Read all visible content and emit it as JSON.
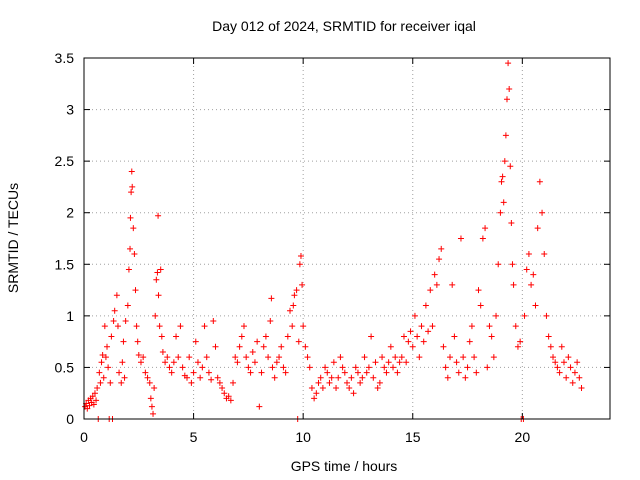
{
  "chart_data": {
    "type": "scatter",
    "title": "Day 012 of 2024, SRMTID for receiver iqal",
    "xlabel": "GPS time / hours",
    "ylabel": "SRMTID / TECUs",
    "xlim": [
      0,
      24
    ],
    "ylim": [
      0,
      3.5
    ],
    "xticks": [
      0,
      5,
      10,
      15,
      20
    ],
    "xtick_labels": [
      "0",
      "5",
      "10",
      "15",
      "20"
    ],
    "yticks": [
      0,
      0.5,
      1,
      1.5,
      2,
      2.5,
      3,
      3.5
    ],
    "ytick_labels": [
      "0",
      "0.5",
      "1",
      "1.5",
      "2",
      "2.5",
      "3",
      "3.5"
    ],
    "grid": true,
    "marker": "plus",
    "color": "#ff0000",
    "series": [
      {
        "name": "SRMTID",
        "points": [
          [
            0.05,
            0.12
          ],
          [
            0.1,
            0.15
          ],
          [
            0.15,
            0.1
          ],
          [
            0.2,
            0.18
          ],
          [
            0.25,
            0.13
          ],
          [
            0.3,
            0.2
          ],
          [
            0.35,
            0.16
          ],
          [
            0.4,
            0.22
          ],
          [
            0.45,
            0.14
          ],
          [
            0.5,
            0.25
          ],
          [
            0.55,
            0.18
          ],
          [
            0.6,
            0.3
          ],
          [
            0.65,
            0.0
          ],
          [
            0.7,
            0.45
          ],
          [
            0.75,
            0.35
          ],
          [
            0.8,
            0.55
          ],
          [
            0.85,
            0.62
          ],
          [
            0.9,
            0.4
          ],
          [
            0.95,
            0.9
          ],
          [
            1.0,
            0.6
          ],
          [
            1.05,
            0.7
          ],
          [
            1.1,
            0.5
          ],
          [
            1.15,
            0.0
          ],
          [
            1.2,
            0.35
          ],
          [
            1.25,
            0.8
          ],
          [
            1.3,
            0.0
          ],
          [
            1.35,
            0.95
          ],
          [
            1.4,
            1.05
          ],
          [
            1.5,
            1.2
          ],
          [
            1.55,
            0.9
          ],
          [
            1.6,
            0.45
          ],
          [
            1.7,
            0.35
          ],
          [
            1.75,
            0.55
          ],
          [
            1.8,
            0.75
          ],
          [
            1.85,
            0.4
          ],
          [
            1.9,
            0.95
          ],
          [
            2.0,
            1.1
          ],
          [
            2.05,
            1.45
          ],
          [
            2.1,
            1.65
          ],
          [
            2.12,
            1.95
          ],
          [
            2.15,
            2.2
          ],
          [
            2.18,
            2.4
          ],
          [
            2.2,
            2.25
          ],
          [
            2.25,
            1.85
          ],
          [
            2.3,
            1.6
          ],
          [
            2.35,
            1.25
          ],
          [
            2.4,
            0.9
          ],
          [
            2.45,
            0.75
          ],
          [
            2.5,
            0.62
          ],
          [
            2.6,
            0.55
          ],
          [
            2.7,
            0.6
          ],
          [
            2.8,
            0.45
          ],
          [
            2.9,
            0.4
          ],
          [
            3.0,
            0.35
          ],
          [
            3.05,
            0.2
          ],
          [
            3.1,
            0.12
          ],
          [
            3.15,
            0.05
          ],
          [
            3.2,
            0.3
          ],
          [
            3.25,
            1.0
          ],
          [
            3.3,
            1.35
          ],
          [
            3.35,
            1.42
          ],
          [
            3.38,
            1.97
          ],
          [
            3.4,
            1.2
          ],
          [
            3.45,
            0.9
          ],
          [
            3.5,
            1.45
          ],
          [
            3.55,
            0.8
          ],
          [
            3.6,
            0.65
          ],
          [
            3.7,
            0.55
          ],
          [
            3.8,
            0.6
          ],
          [
            3.9,
            0.5
          ],
          [
            4.0,
            0.45
          ],
          [
            4.1,
            0.55
          ],
          [
            4.2,
            0.8
          ],
          [
            4.3,
            0.6
          ],
          [
            4.4,
            0.9
          ],
          [
            4.5,
            0.5
          ],
          [
            4.6,
            0.42
          ],
          [
            4.7,
            0.4
          ],
          [
            4.8,
            0.6
          ],
          [
            4.9,
            0.35
          ],
          [
            5.0,
            0.45
          ],
          [
            5.1,
            0.75
          ],
          [
            5.2,
            0.55
          ],
          [
            5.3,
            0.4
          ],
          [
            5.4,
            0.5
          ],
          [
            5.5,
            0.9
          ],
          [
            5.6,
            0.6
          ],
          [
            5.7,
            0.45
          ],
          [
            5.8,
            0.38
          ],
          [
            5.9,
            0.95
          ],
          [
            6.0,
            0.7
          ],
          [
            6.1,
            0.4
          ],
          [
            6.2,
            0.35
          ],
          [
            6.3,
            0.3
          ],
          [
            6.4,
            0.25
          ],
          [
            6.5,
            0.2
          ],
          [
            6.6,
            0.22
          ],
          [
            6.7,
            0.18
          ],
          [
            6.8,
            0.35
          ],
          [
            6.9,
            0.6
          ],
          [
            7.0,
            0.55
          ],
          [
            7.1,
            0.7
          ],
          [
            7.2,
            0.8
          ],
          [
            7.3,
            0.9
          ],
          [
            7.4,
            0.6
          ],
          [
            7.5,
            0.5
          ],
          [
            7.6,
            0.45
          ],
          [
            7.7,
            0.65
          ],
          [
            7.8,
            0.55
          ],
          [
            7.9,
            0.75
          ],
          [
            8.0,
            0.12
          ],
          [
            8.1,
            0.45
          ],
          [
            8.2,
            0.7
          ],
          [
            8.3,
            0.8
          ],
          [
            8.4,
            0.6
          ],
          [
            8.5,
            0.95
          ],
          [
            8.55,
            1.17
          ],
          [
            8.6,
            0.5
          ],
          [
            8.7,
            0.4
          ],
          [
            8.8,
            0.55
          ],
          [
            8.9,
            0.6
          ],
          [
            9.0,
            0.7
          ],
          [
            9.1,
            0.5
          ],
          [
            9.2,
            0.45
          ],
          [
            9.3,
            0.8
          ],
          [
            9.4,
            1.05
          ],
          [
            9.5,
            0.9
          ],
          [
            9.55,
            1.1
          ],
          [
            9.6,
            1.2
          ],
          [
            9.7,
            1.25
          ],
          [
            9.75,
            0.0
          ],
          [
            9.8,
            0.75
          ],
          [
            9.85,
            1.5
          ],
          [
            9.9,
            1.58
          ],
          [
            9.95,
            1.3
          ],
          [
            10.0,
            0.9
          ],
          [
            10.1,
            0.7
          ],
          [
            10.2,
            0.6
          ],
          [
            10.3,
            0.5
          ],
          [
            10.4,
            0.3
          ],
          [
            10.5,
            0.2
          ],
          [
            10.6,
            0.25
          ],
          [
            10.7,
            0.35
          ],
          [
            10.8,
            0.4
          ],
          [
            10.9,
            0.3
          ],
          [
            11.0,
            0.5
          ],
          [
            11.1,
            0.45
          ],
          [
            11.2,
            0.35
          ],
          [
            11.3,
            0.4
          ],
          [
            11.4,
            0.55
          ],
          [
            11.5,
            0.3
          ],
          [
            11.6,
            0.4
          ],
          [
            11.7,
            0.6
          ],
          [
            11.8,
            0.5
          ],
          [
            11.9,
            0.45
          ],
          [
            12.0,
            0.35
          ],
          [
            12.1,
            0.3
          ],
          [
            12.2,
            0.4
          ],
          [
            12.3,
            0.25
          ],
          [
            12.4,
            0.5
          ],
          [
            12.5,
            0.45
          ],
          [
            12.6,
            0.35
          ],
          [
            12.7,
            0.4
          ],
          [
            12.8,
            0.6
          ],
          [
            12.9,
            0.45
          ],
          [
            13.0,
            0.5
          ],
          [
            13.1,
            0.8
          ],
          [
            13.2,
            0.4
          ],
          [
            13.3,
            0.55
          ],
          [
            13.4,
            0.3
          ],
          [
            13.5,
            0.35
          ],
          [
            13.6,
            0.6
          ],
          [
            13.7,
            0.5
          ],
          [
            13.8,
            0.45
          ],
          [
            13.9,
            0.55
          ],
          [
            14.0,
            0.7
          ],
          [
            14.1,
            0.5
          ],
          [
            14.2,
            0.6
          ],
          [
            14.3,
            0.45
          ],
          [
            14.4,
            0.55
          ],
          [
            14.5,
            0.6
          ],
          [
            14.6,
            0.8
          ],
          [
            14.7,
            0.55
          ],
          [
            14.8,
            0.75
          ],
          [
            14.9,
            0.85
          ],
          [
            15.0,
            0.7
          ],
          [
            15.1,
            1.0
          ],
          [
            15.2,
            0.8
          ],
          [
            15.3,
            0.6
          ],
          [
            15.4,
            0.9
          ],
          [
            15.5,
            0.75
          ],
          [
            15.6,
            1.1
          ],
          [
            15.7,
            0.85
          ],
          [
            15.8,
            1.25
          ],
          [
            15.9,
            0.9
          ],
          [
            16.0,
            1.4
          ],
          [
            16.1,
            1.3
          ],
          [
            16.2,
            1.55
          ],
          [
            16.3,
            1.65
          ],
          [
            16.4,
            0.7
          ],
          [
            16.5,
            0.5
          ],
          [
            16.6,
            0.4
          ],
          [
            16.7,
            0.6
          ],
          [
            16.8,
            1.3
          ],
          [
            16.9,
            0.8
          ],
          [
            17.0,
            0.55
          ],
          [
            17.1,
            0.45
          ],
          [
            17.2,
            1.75
          ],
          [
            17.3,
            0.6
          ],
          [
            17.4,
            0.4
          ],
          [
            17.5,
            0.5
          ],
          [
            17.6,
            0.75
          ],
          [
            17.7,
            0.9
          ],
          [
            17.8,
            0.6
          ],
          [
            17.9,
            0.45
          ],
          [
            18.0,
            1.25
          ],
          [
            18.1,
            1.1
          ],
          [
            18.2,
            1.75
          ],
          [
            18.3,
            1.85
          ],
          [
            18.4,
            0.5
          ],
          [
            18.5,
            0.9
          ],
          [
            18.6,
            0.8
          ],
          [
            18.7,
            0.6
          ],
          [
            18.8,
            1.0
          ],
          [
            18.9,
            1.5
          ],
          [
            19.0,
            2.0
          ],
          [
            19.05,
            2.3
          ],
          [
            19.1,
            2.35
          ],
          [
            19.15,
            2.1
          ],
          [
            19.2,
            2.5
          ],
          [
            19.25,
            2.75
          ],
          [
            19.3,
            3.1
          ],
          [
            19.35,
            3.45
          ],
          [
            19.4,
            3.2
          ],
          [
            19.45,
            2.45
          ],
          [
            19.5,
            1.9
          ],
          [
            19.55,
            1.5
          ],
          [
            19.6,
            1.3
          ],
          [
            19.7,
            0.9
          ],
          [
            19.8,
            0.7
          ],
          [
            19.9,
            0.75
          ],
          [
            19.95,
            0.0
          ],
          [
            20.05,
            0.0
          ],
          [
            20.1,
            1.0
          ],
          [
            20.2,
            1.45
          ],
          [
            20.3,
            1.6
          ],
          [
            20.4,
            1.3
          ],
          [
            20.5,
            1.4
          ],
          [
            20.6,
            1.1
          ],
          [
            20.7,
            1.85
          ],
          [
            20.8,
            2.3
          ],
          [
            20.9,
            2.0
          ],
          [
            21.0,
            1.6
          ],
          [
            21.1,
            1.0
          ],
          [
            21.2,
            0.8
          ],
          [
            21.3,
            0.7
          ],
          [
            21.4,
            0.6
          ],
          [
            21.5,
            0.55
          ],
          [
            21.6,
            0.5
          ],
          [
            21.7,
            0.45
          ],
          [
            21.8,
            0.7
          ],
          [
            21.9,
            0.55
          ],
          [
            22.0,
            0.4
          ],
          [
            22.1,
            0.6
          ],
          [
            22.2,
            0.5
          ],
          [
            22.3,
            0.35
          ],
          [
            22.4,
            0.45
          ],
          [
            22.5,
            0.55
          ],
          [
            22.6,
            0.4
          ],
          [
            22.7,
            0.3
          ]
        ]
      }
    ]
  }
}
